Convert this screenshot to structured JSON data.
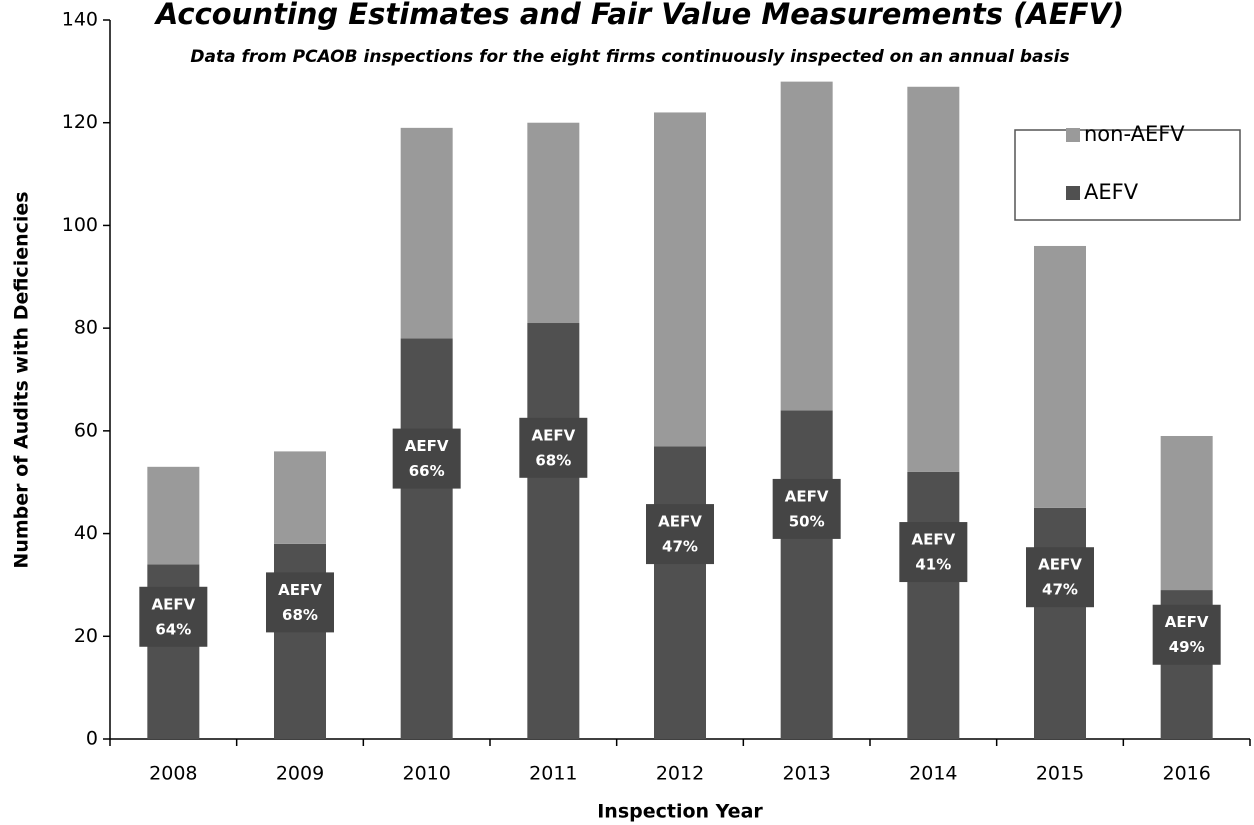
{
  "chart_data": {
    "type": "stacked_bar",
    "title": "Accounting Estimates and Fair Value Measurements (AEFV)",
    "subtitle": "Data from PCAOB inspections for the eight firms continuously inspected on an annual basis",
    "x_label": "Inspection Year",
    "y_label": "Number of Audits with Deficiencies",
    "categories": [
      "2008",
      "2009",
      "2010",
      "2011",
      "2012",
      "2013",
      "2014",
      "2015",
      "2016"
    ],
    "series": [
      {
        "name": "AEFV",
        "color": "#505050",
        "values": [
          34,
          38,
          78,
          81,
          57,
          64,
          52,
          45,
          29
        ]
      },
      {
        "name": "non-AEFV",
        "color": "#9a9a9a",
        "values": [
          19,
          18,
          41,
          39,
          65,
          64,
          75,
          51,
          30
        ]
      }
    ],
    "annotations": [
      [
        "AEFV",
        "64%"
      ],
      [
        "AEFV",
        "68%"
      ],
      [
        "AEFV",
        "66%"
      ],
      [
        "AEFV",
        "68%"
      ],
      [
        "AEFV",
        "47%"
      ],
      [
        "AEFV",
        "50%"
      ],
      [
        "AEFV",
        "41%"
      ],
      [
        "AEFV",
        "47%"
      ],
      [
        "AEFV",
        "49%"
      ]
    ],
    "ylim": [
      0,
      140
    ],
    "yticks": [
      0,
      20,
      40,
      60,
      80,
      100,
      120,
      140
    ],
    "grid": false,
    "legend": "upper right"
  }
}
